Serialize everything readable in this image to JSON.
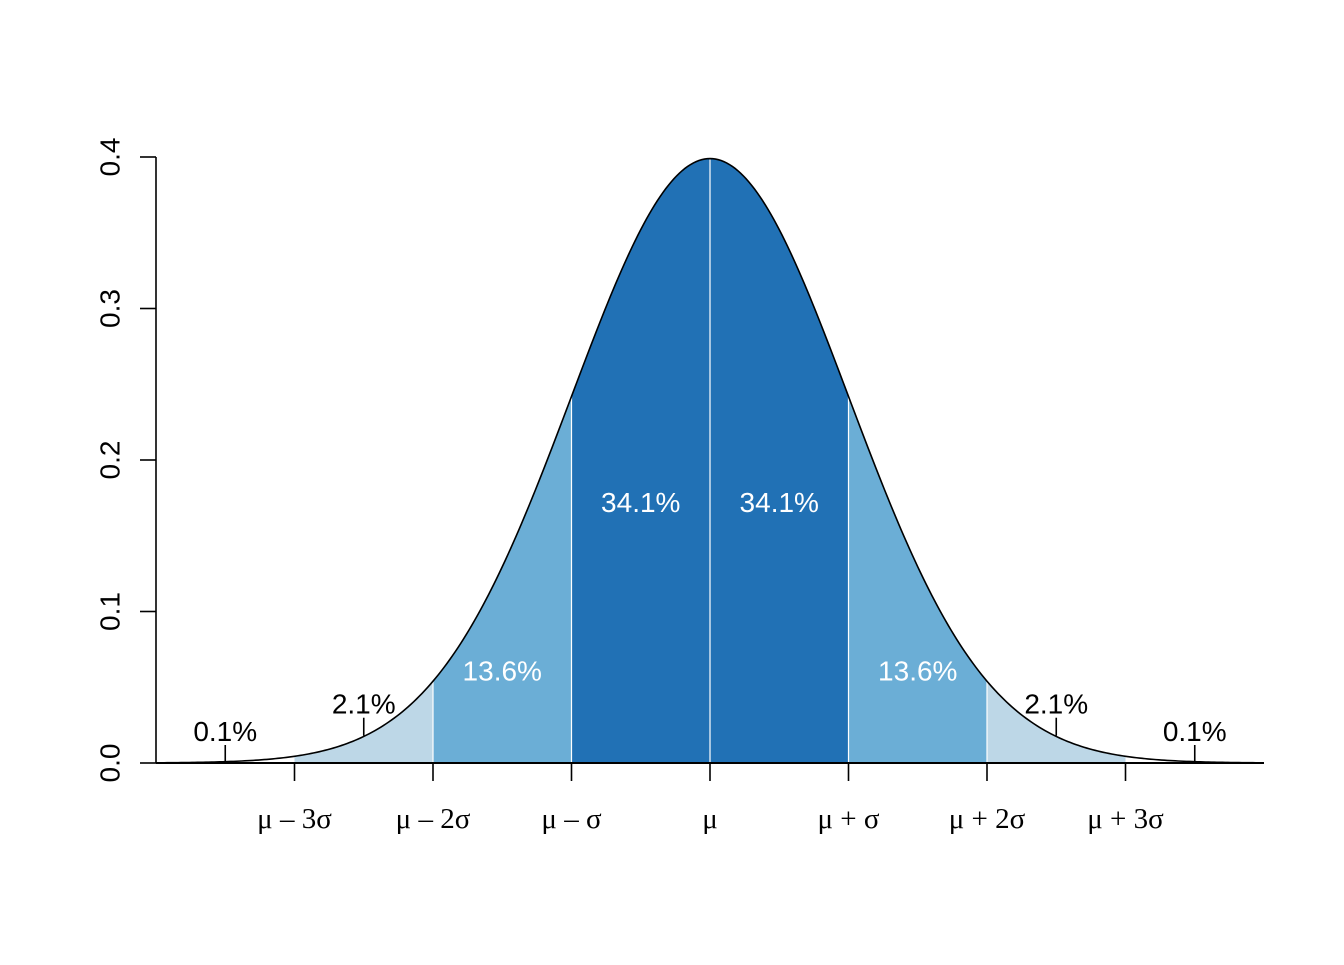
{
  "chart_data": {
    "type": "area",
    "title": "",
    "xlabel": "",
    "ylabel": "",
    "ylim": [
      0,
      0.4
    ],
    "xlim": [
      -4,
      4
    ],
    "y_ticks": [
      "0.0",
      "0.1",
      "0.2",
      "0.3",
      "0.4"
    ],
    "y_tick_values": [
      0.0,
      0.1,
      0.2,
      0.3,
      0.4
    ],
    "x_ticks": [
      "μ – 3σ",
      "μ – 2σ",
      "μ – σ",
      "μ",
      "μ + σ",
      "μ + 2σ",
      "μ + 3σ"
    ],
    "x_tick_values": [
      -3,
      -2,
      -1,
      0,
      1,
      2,
      3
    ],
    "curve": "normal density, mean 0, sd 1",
    "regions": [
      {
        "from": -4,
        "to": -3,
        "percent": "0.1%",
        "color": "#ffffff"
      },
      {
        "from": -3,
        "to": -2,
        "percent": "2.1%",
        "color": "#bdd7e7"
      },
      {
        "from": -2,
        "to": -1,
        "percent": "13.6%",
        "color": "#6baed6"
      },
      {
        "from": -1,
        "to": 0,
        "percent": "34.1%",
        "color": "#2171b5"
      },
      {
        "from": 0,
        "to": 1,
        "percent": "34.1%",
        "color": "#2171b5"
      },
      {
        "from": 1,
        "to": 2,
        "percent": "13.6%",
        "color": "#6baed6"
      },
      {
        "from": 2,
        "to": 3,
        "percent": "2.1%",
        "color": "#bdd7e7"
      },
      {
        "from": 3,
        "to": 4,
        "percent": "0.1%",
        "color": "#ffffff"
      }
    ],
    "labels": [
      {
        "text": "0.1%",
        "x": -3.5,
        "y": 0.0,
        "color": "#000000",
        "leader": true
      },
      {
        "text": "2.1%",
        "x": -2.5,
        "y": 0.018,
        "color": "#000000",
        "leader": true
      },
      {
        "text": "13.6%",
        "x": -1.5,
        "y": 0.048,
        "color": "#ffffff",
        "leader": false
      },
      {
        "text": "34.1%",
        "x": -0.5,
        "y": 0.159,
        "color": "#ffffff",
        "leader": false
      },
      {
        "text": "34.1%",
        "x": 0.5,
        "y": 0.159,
        "color": "#ffffff",
        "leader": false
      },
      {
        "text": "13.6%",
        "x": 1.5,
        "y": 0.048,
        "color": "#ffffff",
        "leader": false
      },
      {
        "text": "2.1%",
        "x": 2.5,
        "y": 0.018,
        "color": "#000000",
        "leader": true
      },
      {
        "text": "0.1%",
        "x": 3.5,
        "y": 0.0,
        "color": "#000000",
        "leader": true
      }
    ],
    "grid": false,
    "legend": "none"
  }
}
